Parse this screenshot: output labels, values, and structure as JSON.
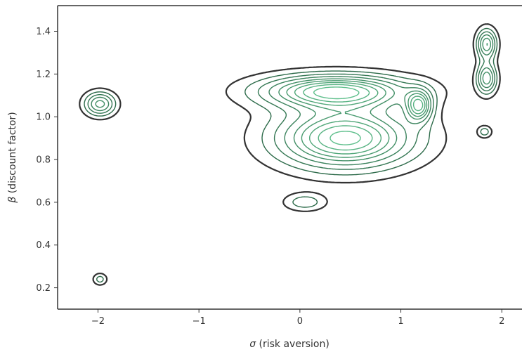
{
  "chart_data": {
    "type": "contour",
    "title": "",
    "xlabel_symbol": "σ",
    "xlabel_text": " (risk aversion)",
    "ylabel_symbol": "β",
    "ylabel_text": " (discount factor)",
    "xlim": [
      -2.4,
      2.2
    ],
    "ylim": [
      0.1,
      1.52
    ],
    "x_ticks": [
      -2,
      -1,
      0,
      1,
      2
    ],
    "x_tick_labels": [
      "−2",
      "−1",
      "0",
      "1",
      "2"
    ],
    "y_ticks": [
      0.2,
      0.4,
      0.6,
      0.8,
      1.0,
      1.2,
      1.4
    ],
    "y_tick_labels": [
      "0.2",
      "0.4",
      "0.6",
      "0.8",
      "1.0",
      "1.2",
      "1.4"
    ],
    "grid": false,
    "colors": {
      "outer_contour": "#333333",
      "inner_contour_dark": "#2d6b4a",
      "inner_contour_light": "#5fbf8c"
    },
    "density_peaks": [
      {
        "name": "main-upper",
        "x": 0.35,
        "y": 1.12,
        "sx": 0.52,
        "sy": 0.055,
        "w": 1.0
      },
      {
        "name": "main-lower",
        "x": 0.45,
        "y": 0.9,
        "sx": 0.48,
        "sy": 0.1,
        "w": 1.05
      },
      {
        "name": "main-right",
        "x": 1.18,
        "y": 1.05,
        "sx": 0.09,
        "sy": 0.05,
        "w": 0.75
      },
      {
        "name": "left-mode",
        "x": -1.98,
        "y": 1.06,
        "sx": 0.11,
        "sy": 0.04,
        "w": 0.65
      },
      {
        "name": "bottom-left",
        "x": -1.98,
        "y": 0.24,
        "sx": 0.05,
        "sy": 0.02,
        "w": 0.3
      },
      {
        "name": "right-upper",
        "x": 1.85,
        "y": 1.34,
        "sx": 0.07,
        "sy": 0.05,
        "w": 0.7
      },
      {
        "name": "right-middle",
        "x": 1.85,
        "y": 1.18,
        "sx": 0.07,
        "sy": 0.05,
        "w": 0.68
      },
      {
        "name": "right-small",
        "x": 1.83,
        "y": 0.93,
        "sx": 0.05,
        "sy": 0.02,
        "w": 0.3
      },
      {
        "name": "lower-tail",
        "x": 0.05,
        "y": 0.6,
        "sx": 0.15,
        "sy": 0.03,
        "w": 0.32
      }
    ]
  }
}
